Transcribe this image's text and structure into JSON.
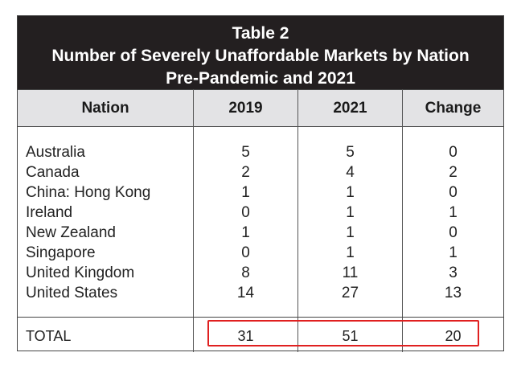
{
  "chart_data": {
    "type": "table",
    "title": "Table 2",
    "subtitle_line1": "Number of Severely Unaffordable Markets by Nation",
    "subtitle_line2": "Pre-Pandemic and 2021",
    "columns": [
      "Nation",
      "2019",
      "2021",
      "Change"
    ],
    "rows": [
      {
        "nation": "Australia",
        "y2019": "5",
        "y2021": "5",
        "change": "0"
      },
      {
        "nation": "Canada",
        "y2019": "2",
        "y2021": "4",
        "change": "2"
      },
      {
        "nation": "China: Hong Kong",
        "y2019": "1",
        "y2021": "1",
        "change": "0"
      },
      {
        "nation": "Ireland",
        "y2019": "0",
        "y2021": "1",
        "change": "1"
      },
      {
        "nation": "New Zealand",
        "y2019": "1",
        "y2021": "1",
        "change": "0"
      },
      {
        "nation": "Singapore",
        "y2019": "0",
        "y2021": "1",
        "change": "1"
      },
      {
        "nation": "United Kingdom",
        "y2019": "8",
        "y2021": "11",
        "change": "3"
      },
      {
        "nation": "United States",
        "y2019": "14",
        "y2021": "27",
        "change": "13"
      }
    ],
    "total": {
      "label": "TOTAL",
      "y2019": "31",
      "y2021": "51",
      "change": "20"
    }
  },
  "colors": {
    "title_background": "#231f20",
    "header_background": "#e3e3e5",
    "highlight_border": "#e02020"
  }
}
